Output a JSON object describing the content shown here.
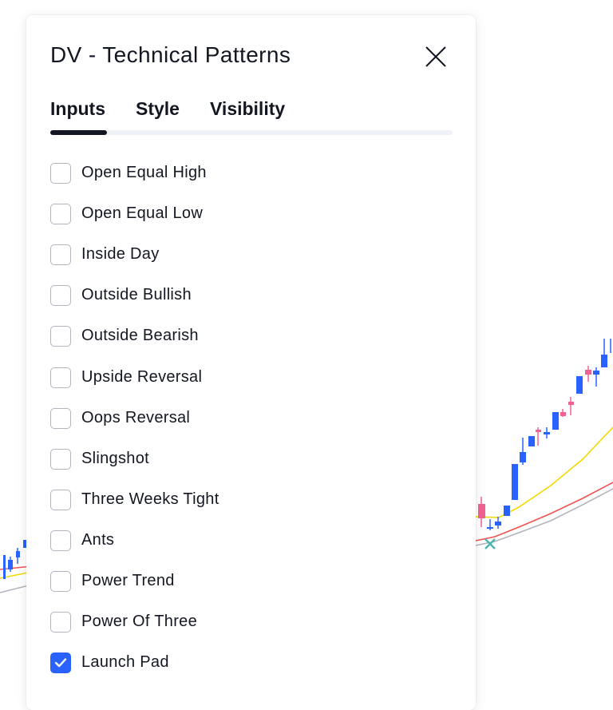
{
  "dialog": {
    "title": "DV - Technical Patterns",
    "close_icon": "close-icon"
  },
  "tabs": [
    {
      "label": "Inputs",
      "active": true
    },
    {
      "label": "Style",
      "active": false
    },
    {
      "label": "Visibility",
      "active": false
    }
  ],
  "options": [
    {
      "label": "Open Equal High",
      "checked": false
    },
    {
      "label": "Open Equal Low",
      "checked": false
    },
    {
      "label": "Inside Day",
      "checked": false
    },
    {
      "label": "Outside Bullish",
      "checked": false
    },
    {
      "label": "Outside Bearish",
      "checked": false
    },
    {
      "label": "Upside Reversal",
      "checked": false
    },
    {
      "label": "Oops Reversal",
      "checked": false
    },
    {
      "label": "Slingshot",
      "checked": false
    },
    {
      "label": "Three Weeks Tight",
      "checked": false
    },
    {
      "label": "Ants",
      "checked": false
    },
    {
      "label": "Power Trend",
      "checked": false
    },
    {
      "label": "Power Of Three",
      "checked": false
    },
    {
      "label": "Launch Pad",
      "checked": true
    }
  ],
  "colors": {
    "accent": "#2962ff",
    "bullish_candle": "#2962ff",
    "bearish_candle": "#f06292",
    "ma_fast": "#f5d800",
    "ma_mid": "#ef5350",
    "ma_slow": "#b2b5be",
    "marker": "#4db6ac"
  }
}
